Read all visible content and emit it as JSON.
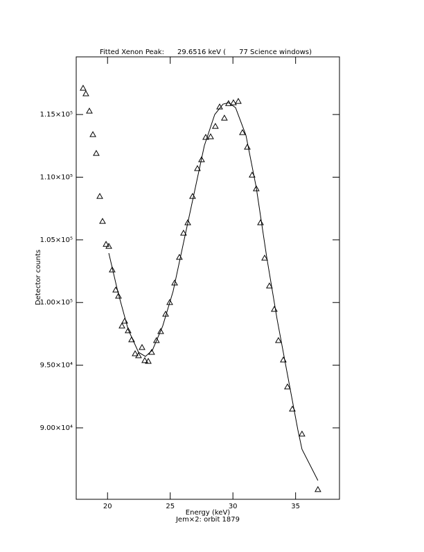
{
  "chart_data": {
    "type": "scatter",
    "title": "Fitted Xenon Peak:      29.6516 keV (      77 Science windows)",
    "x_label": "Energy (keV)",
    "subtitle": "Jem×2: orbit 1879",
    "y_label": "Detector counts",
    "xlim": [
      17.5,
      38.5
    ],
    "ylim": [
      84300,
      119600
    ],
    "xticks": [
      20,
      25,
      30,
      35
    ],
    "yticks": [
      {
        "value": 90000,
        "label": "9.00×10⁴"
      },
      {
        "value": 95000,
        "label": "9.50×10⁴"
      },
      {
        "value": 100000,
        "label": "1.00×10⁵"
      },
      {
        "value": 105000,
        "label": "1.05×10⁵"
      },
      {
        "value": 110000,
        "label": "1.10×10⁵"
      },
      {
        "value": 115000,
        "label": "1.15×10⁵"
      }
    ],
    "series": [
      {
        "style": "markers",
        "color": "#000000",
        "x": [
          18.05,
          18.27,
          18.55,
          18.83,
          19.1,
          19.38,
          19.6,
          19.88,
          20.1,
          20.37,
          20.65,
          20.87,
          21.15,
          21.37,
          21.64,
          21.92,
          22.2,
          22.47,
          22.75,
          22.97,
          23.25,
          23.52,
          23.9,
          24.24,
          24.63,
          24.96,
          25.35,
          25.73,
          26.06,
          26.4,
          26.78,
          27.17,
          27.5,
          27.83,
          28.22,
          28.6,
          28.94,
          29.32,
          29.65,
          30.04,
          30.43,
          30.76,
          31.15,
          31.53,
          31.86,
          32.2,
          32.53,
          32.91,
          33.3,
          33.63,
          34.02,
          34.35,
          34.74,
          35.51,
          36.78
        ],
        "values": [
          117100,
          116660,
          115280,
          113400,
          111900,
          108470,
          106480,
          104650,
          104490,
          102610,
          101000,
          100510,
          98130,
          98520,
          97750,
          97030,
          95920,
          95760,
          96420,
          95370,
          95310,
          96030,
          96970,
          97690,
          99070,
          100010,
          101560,
          103610,
          105540,
          106370,
          108470,
          110690,
          111400,
          113180,
          113230,
          114060,
          115610,
          114720,
          115880,
          115940,
          116050,
          113560,
          112400,
          110170,
          109080,
          106370,
          103550,
          101330,
          99460,
          96970,
          95420,
          93270,
          91500,
          89510,
          85080
        ]
      },
      {
        "style": "line",
        "color": "#000000",
        "x": [
          20.1,
          20.81,
          21.64,
          22.47,
          23.02,
          23.58,
          24.4,
          25.23,
          26.06,
          26.89,
          27.72,
          28.55,
          29.21,
          29.65,
          30.21,
          31.04,
          31.86,
          32.69,
          33.52,
          34.35,
          35.18,
          35.51,
          36.78
        ],
        "values": [
          103940,
          100900,
          97860,
          96030,
          95700,
          96200,
          98130,
          100900,
          104770,
          108640,
          112510,
          115000,
          115830,
          115940,
          115550,
          113340,
          109190,
          103660,
          98690,
          94260,
          89840,
          88290,
          85800
        ]
      }
    ]
  }
}
